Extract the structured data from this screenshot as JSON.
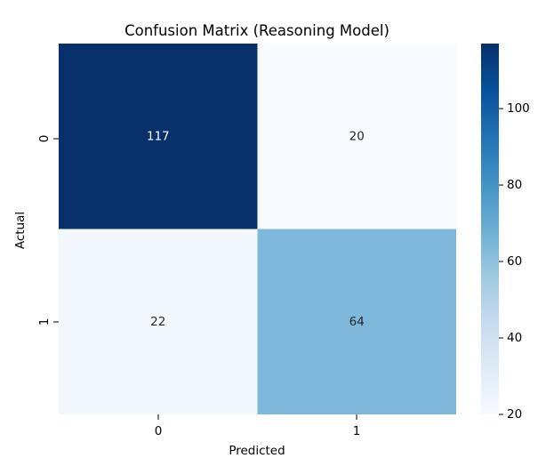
{
  "chart_data": {
    "type": "heatmap",
    "title": "Confusion Matrix (Reasoning Model)",
    "xlabel": "Predicted",
    "ylabel": "Actual",
    "x_categories": [
      "0",
      "1"
    ],
    "y_categories": [
      "0",
      "1"
    ],
    "values": [
      [
        117,
        20
      ],
      [
        22,
        64
      ]
    ],
    "colormap": "Blues",
    "color_range": [
      20,
      117
    ],
    "colorbar_ticks": [
      "20",
      "40",
      "60",
      "80",
      "100"
    ],
    "colors": {
      "low": "#f7fbff",
      "high": "#08306b",
      "light_text": "#ffffff",
      "dark_text": "#262626"
    },
    "grid": false,
    "legend": "colorbar-right"
  }
}
